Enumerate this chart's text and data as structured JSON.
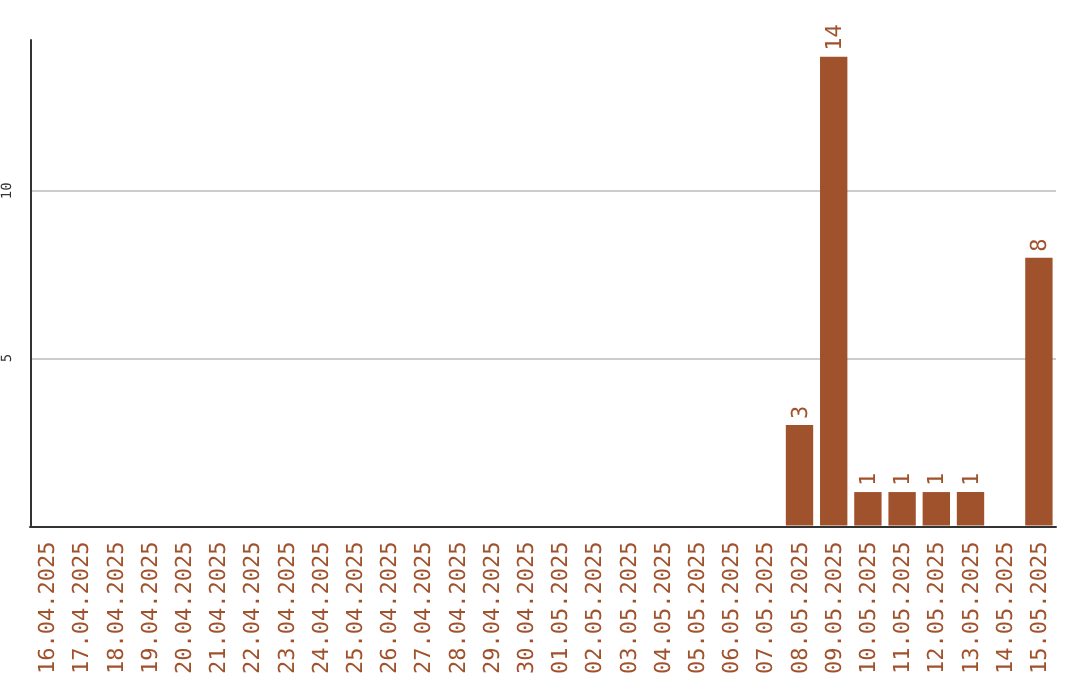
{
  "chart_data": {
    "type": "bar",
    "categories": [
      "16.04.2025",
      "17.04.2025",
      "18.04.2025",
      "19.04.2025",
      "20.04.2025",
      "21.04.2025",
      "22.04.2025",
      "23.04.2025",
      "24.04.2025",
      "25.04.2025",
      "26.04.2025",
      "27.04.2025",
      "28.04.2025",
      "29.04.2025",
      "30.04.2025",
      "01.05.2025",
      "02.05.2025",
      "03.05.2025",
      "04.05.2025",
      "05.05.2025",
      "06.05.2025",
      "07.05.2025",
      "08.05.2025",
      "09.05.2025",
      "10.05.2025",
      "11.05.2025",
      "12.05.2025",
      "13.05.2025",
      "14.05.2025",
      "15.05.2025"
    ],
    "values": [
      0,
      0,
      0,
      0,
      0,
      0,
      0,
      0,
      0,
      0,
      0,
      0,
      0,
      0,
      0,
      0,
      0,
      0,
      0,
      0,
      0,
      0,
      3,
      14,
      1,
      1,
      1,
      1,
      0,
      8
    ],
    "value_labels": [
      null,
      null,
      null,
      null,
      null,
      null,
      null,
      null,
      null,
      null,
      null,
      null,
      null,
      null,
      null,
      null,
      null,
      null,
      null,
      null,
      null,
      null,
      "3",
      "14",
      "1",
      "1",
      "1",
      "1",
      null,
      "8"
    ],
    "color": "#a0522d",
    "ylim": [
      0,
      14.5
    ],
    "yticks": [
      5,
      10
    ],
    "grid": "y"
  }
}
